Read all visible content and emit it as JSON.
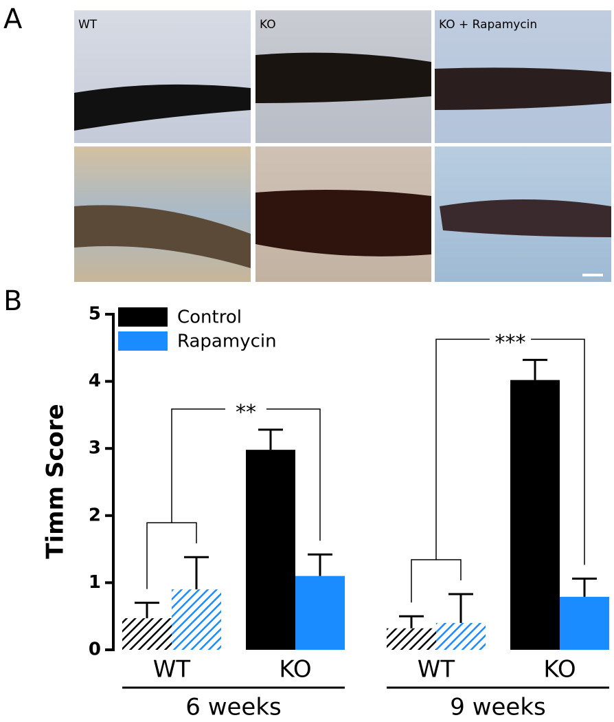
{
  "panel_a": {
    "label": "A",
    "images": [
      "WT",
      "KO",
      "KO + Rapamycin"
    ]
  },
  "chart_data": {
    "type": "bar",
    "panel_label": "B",
    "ylabel": "Timm Score",
    "categories": [
      "WT",
      "KO",
      "WT",
      "KO"
    ],
    "groups": [
      "6 weeks",
      "9 weeks"
    ],
    "hatch": [
      true,
      false,
      true,
      false
    ],
    "series": [
      {
        "name": "Control",
        "color": "#000000",
        "values": [
          0.47,
          2.98,
          0.32,
          4.02
        ],
        "errors": [
          0.23,
          0.3,
          0.18,
          0.3
        ]
      },
      {
        "name": "Rapamycin",
        "color": "#1a8cff",
        "values": [
          0.9,
          1.1,
          0.4,
          0.79
        ],
        "errors": [
          0.48,
          0.32,
          0.43,
          0.27
        ]
      }
    ],
    "annotations": [
      "**",
      "***"
    ],
    "ylim": [
      0,
      5
    ],
    "yticks": [
      0,
      1,
      2,
      3,
      4,
      5
    ]
  }
}
